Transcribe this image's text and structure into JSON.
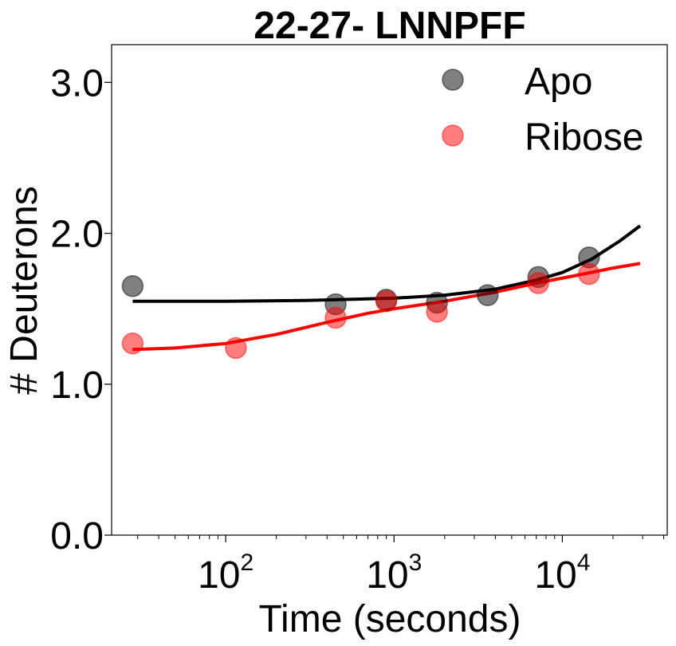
{
  "chart_data": {
    "type": "scatter",
    "title": "22-27- LNNPFF",
    "xlabel": "Time (seconds)",
    "ylabel": "# Deuterons",
    "xscale": "log",
    "xlim": [
      21,
      42000
    ],
    "ylim": [
      0,
      3.25
    ],
    "x_ticks": [
      {
        "value": 100,
        "base": "10",
        "exp": "2"
      },
      {
        "value": 1000,
        "base": "10",
        "exp": "3"
      },
      {
        "value": 10000,
        "base": "10",
        "exp": "4"
      }
    ],
    "y_ticks": [
      {
        "value": 0,
        "label": "0.0"
      },
      {
        "value": 1,
        "label": "1.0"
      },
      {
        "value": 2,
        "label": "2.0"
      },
      {
        "value": 3,
        "label": "3.0"
      }
    ],
    "legend_position": "top-right",
    "grid": false,
    "series": [
      {
        "name": "Apo",
        "color": "#000000",
        "point_opacity": 0.5,
        "points": [
          {
            "x": 28,
            "y": 1.65
          },
          {
            "x": 450,
            "y": 1.53
          },
          {
            "x": 900,
            "y": 1.56
          },
          {
            "x": 1800,
            "y": 1.54
          },
          {
            "x": 3600,
            "y": 1.59
          },
          {
            "x": 7200,
            "y": 1.71
          },
          {
            "x": 14400,
            "y": 1.84
          }
        ],
        "fit_line": [
          {
            "x": 28,
            "y": 1.55
          },
          {
            "x": 100,
            "y": 1.55
          },
          {
            "x": 300,
            "y": 1.555
          },
          {
            "x": 1000,
            "y": 1.57
          },
          {
            "x": 2000,
            "y": 1.59
          },
          {
            "x": 4000,
            "y": 1.63
          },
          {
            "x": 7000,
            "y": 1.69
          },
          {
            "x": 10000,
            "y": 1.74
          },
          {
            "x": 15000,
            "y": 1.83
          },
          {
            "x": 22000,
            "y": 1.95
          },
          {
            "x": 29000,
            "y": 2.05
          }
        ]
      },
      {
        "name": "Ribose",
        "color": "#ff0000",
        "point_opacity": 0.5,
        "points": [
          {
            "x": 28,
            "y": 1.27
          },
          {
            "x": 115,
            "y": 1.24
          },
          {
            "x": 450,
            "y": 1.44
          },
          {
            "x": 900,
            "y": 1.55
          },
          {
            "x": 1800,
            "y": 1.48
          },
          {
            "x": 7200,
            "y": 1.67
          },
          {
            "x": 14400,
            "y": 1.73
          }
        ],
        "fit_line": [
          {
            "x": 28,
            "y": 1.23
          },
          {
            "x": 50,
            "y": 1.24
          },
          {
            "x": 100,
            "y": 1.27
          },
          {
            "x": 200,
            "y": 1.33
          },
          {
            "x": 400,
            "y": 1.41
          },
          {
            "x": 700,
            "y": 1.47
          },
          {
            "x": 1000,
            "y": 1.5
          },
          {
            "x": 2000,
            "y": 1.55
          },
          {
            "x": 4000,
            "y": 1.61
          },
          {
            "x": 7000,
            "y": 1.67
          },
          {
            "x": 12000,
            "y": 1.72
          },
          {
            "x": 20000,
            "y": 1.77
          },
          {
            "x": 29000,
            "y": 1.8
          }
        ]
      }
    ]
  }
}
